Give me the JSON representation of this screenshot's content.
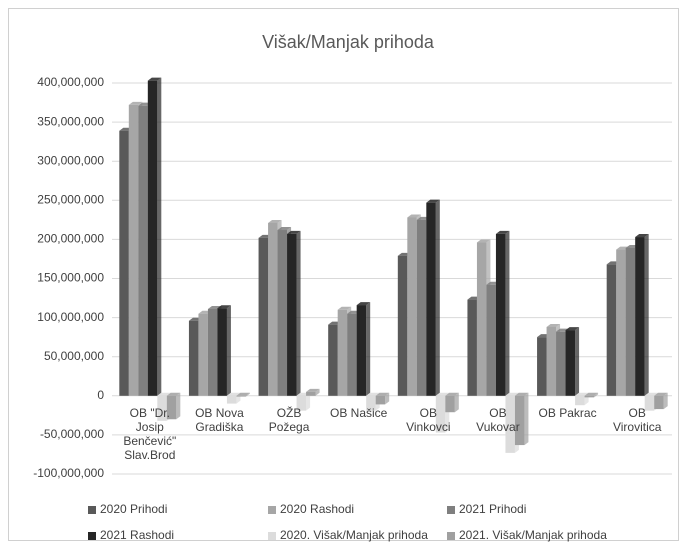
{
  "chart_data": {
    "type": "bar",
    "title": "Višak/Manjak prihoda",
    "categories": [
      "OB \"Dr. Josip Benčević\" Slav.Brod",
      "OB Nova Gradiška",
      "OŽB Požega",
      "OB Našice",
      "OB Vinkovci",
      "OB Vukovar",
      "OB Pakrac",
      "OB Virovitica"
    ],
    "series": [
      {
        "name": "2020 Prihodi",
        "color": "#595959",
        "values": [
          339000000,
          96000000,
          202000000,
          91000000,
          179000000,
          123000000,
          75000000,
          168000000
        ]
      },
      {
        "name": "2020 Rashodi",
        "color": "#a6a6a6",
        "values": [
          372000000,
          105000000,
          221000000,
          110000000,
          228000000,
          196000000,
          88000000,
          187000000
        ]
      },
      {
        "name": "2021 Prihodi",
        "color": "#7f7f7f",
        "values": [
          371000000,
          111000000,
          212000000,
          105000000,
          225000000,
          142000000,
          82000000,
          189000000
        ]
      },
      {
        "name": "2021 Rashodi",
        "color": "#262626",
        "values": [
          403000000,
          112000000,
          207000000,
          116000000,
          247000000,
          207000000,
          84000000,
          203000000
        ]
      },
      {
        "name": "2020. Višak/Manjak prihoda",
        "color": "#dcdcdc",
        "values": [
          -32000000,
          -10000000,
          -19000000,
          -19000000,
          -47000000,
          -73000000,
          -12000000,
          -19000000
        ]
      },
      {
        "name": "2021. Višak/Manjak prihoda",
        "color": "#a0a0a0",
        "values": [
          -30000000,
          -1000000,
          5000000,
          -11000000,
          -21000000,
          -63000000,
          -2000000,
          -17000000
        ]
      }
    ],
    "ylim": [
      -100000000,
      400000000
    ],
    "yticks": [
      {
        "value": -100000000,
        "label": "-100,000,000"
      },
      {
        "value": -50000000,
        "label": "-50,000,000"
      },
      0,
      {
        "value": 50000000,
        "label": "50,000,000"
      },
      {
        "value": 100000000,
        "label": "100,000,000"
      },
      {
        "value": 150000000,
        "label": "150,000,000"
      },
      {
        "value": 200000000,
        "label": "200,000,000"
      },
      {
        "value": 250000000,
        "label": "250,000,000"
      },
      {
        "value": 300000000,
        "label": "300,000,000"
      },
      {
        "value": 350000000,
        "label": "350,000,000"
      },
      {
        "value": 400000000,
        "label": "400,000,000"
      }
    ],
    "grid": true
  }
}
